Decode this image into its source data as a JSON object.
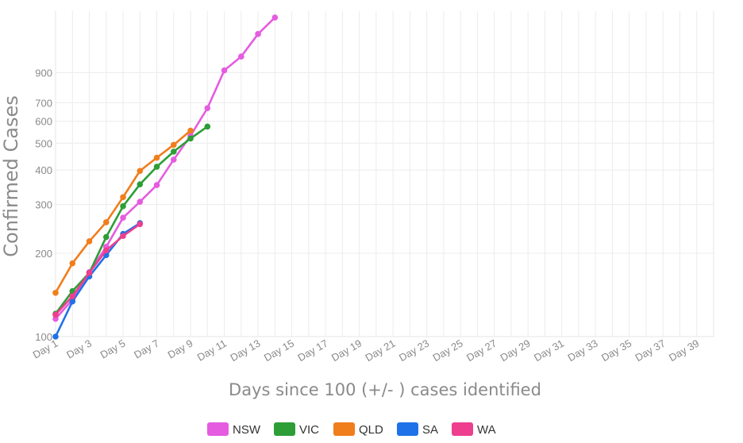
{
  "chart_data": {
    "type": "line",
    "title": "",
    "xlabel": "Days since 100 (+/- ) cases identified",
    "ylabel": "Confirmed Cases",
    "yscale": "log",
    "ylim": [
      100,
      1500
    ],
    "xlim": [
      1,
      40
    ],
    "grid": true,
    "legend_position": "bottom",
    "x_tick_labels": [
      "Day 1",
      "Day 3",
      "Day 5",
      "Day 7",
      "Day 9",
      "Day 11",
      "Day 13",
      "Day 15",
      "Day 17",
      "Day 19",
      "Day 21",
      "Day 23",
      "Day 25",
      "Day 27",
      "Day 29",
      "Day 31",
      "Day 33",
      "Day 35",
      "Day 37",
      "Day 39"
    ],
    "y_ticks": [
      100,
      200,
      300,
      400,
      500,
      600,
      700,
      900
    ],
    "series": [
      {
        "name": "NSW",
        "color": "#e55ce0",
        "x": [
          1,
          2,
          3,
          4,
          5,
          6,
          7,
          8,
          9,
          10,
          11,
          12,
          13,
          14
        ],
        "y": [
          116,
          136,
          171,
          211,
          269,
          307,
          353,
          436,
          532,
          669,
          916,
          1028,
          1240,
          1422
        ]
      },
      {
        "name": "VIC",
        "color": "#2d9e36",
        "x": [
          1,
          2,
          3,
          4,
          5,
          6,
          7,
          8,
          9,
          10
        ],
        "y": [
          121,
          146,
          170,
          229,
          296,
          355,
          411,
          466,
          520,
          574
        ]
      },
      {
        "name": "QLD",
        "color": "#f07e1c",
        "x": [
          1,
          2,
          3,
          4,
          5,
          6,
          7,
          8,
          9
        ],
        "y": [
          144,
          184,
          221,
          259,
          319,
          397,
          443,
          493,
          555
        ]
      },
      {
        "name": "SA",
        "color": "#1f72e8",
        "x": [
          1,
          2,
          3,
          4,
          5,
          6
        ],
        "y": [
          100,
          134,
          165,
          197,
          235,
          257
        ]
      },
      {
        "name": "WA",
        "color": "#ee3f8e",
        "x": [
          1,
          2,
          3,
          4,
          5,
          6
        ],
        "y": [
          120,
          140,
          170,
          205,
          231,
          255
        ]
      }
    ]
  }
}
